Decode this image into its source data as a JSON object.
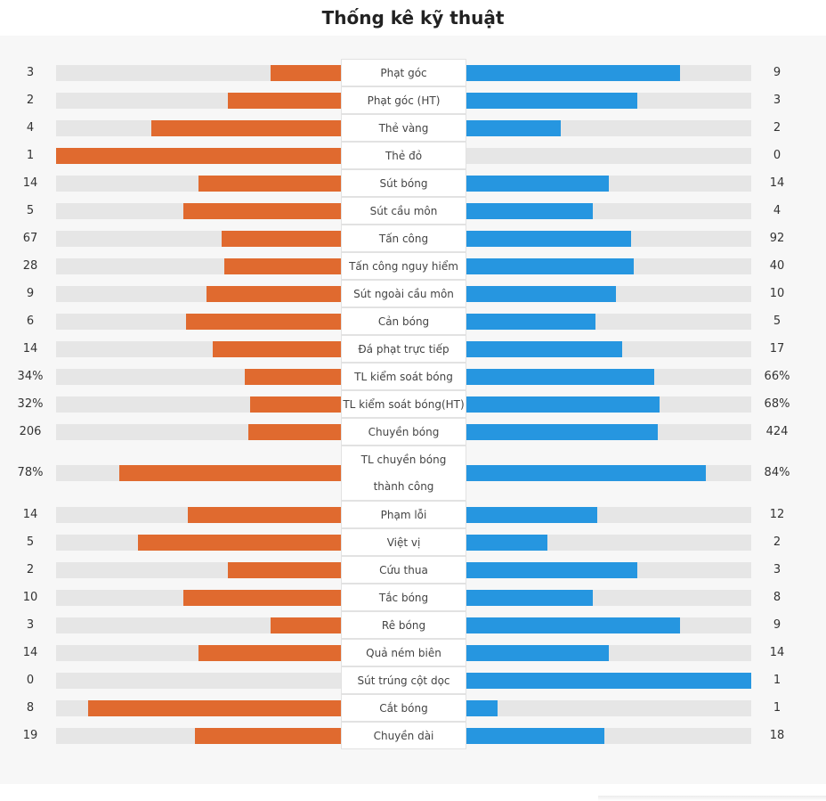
{
  "title": "Thống kê kỹ thuật",
  "colors": {
    "home": "#e06a2f",
    "away": "#2696e0",
    "track": "#e6e6e6"
  },
  "stats": [
    {
      "label": "Phạt góc",
      "home": "3",
      "away": "9",
      "home_fill": 0.25,
      "away_fill": 0.75
    },
    {
      "label": "Phạt góc (HT)",
      "home": "2",
      "away": "3",
      "home_fill": 0.4,
      "away_fill": 0.6
    },
    {
      "label": "Thẻ vàng",
      "home": "4",
      "away": "2",
      "home_fill": 0.667,
      "away_fill": 0.333
    },
    {
      "label": "Thẻ đỏ",
      "home": "1",
      "away": "0",
      "home_fill": 1.0,
      "away_fill": 0.0
    },
    {
      "label": "Sút bóng",
      "home": "14",
      "away": "14",
      "home_fill": 0.5,
      "away_fill": 0.5
    },
    {
      "label": "Sút cầu môn",
      "home": "5",
      "away": "4",
      "home_fill": 0.556,
      "away_fill": 0.444
    },
    {
      "label": "Tấn công",
      "home": "67",
      "away": "92",
      "home_fill": 0.421,
      "away_fill": 0.579
    },
    {
      "label": "Tấn công nguy hiểm",
      "home": "28",
      "away": "40",
      "home_fill": 0.412,
      "away_fill": 0.588
    },
    {
      "label": "Sút ngoài cầu môn",
      "home": "9",
      "away": "10",
      "home_fill": 0.474,
      "away_fill": 0.526
    },
    {
      "label": "Cản bóng",
      "home": "6",
      "away": "5",
      "home_fill": 0.545,
      "away_fill": 0.455
    },
    {
      "label": "Đá phạt trực tiếp",
      "home": "14",
      "away": "17",
      "home_fill": 0.452,
      "away_fill": 0.548
    },
    {
      "label": "TL kiểm soát bóng",
      "home": "34%",
      "away": "66%",
      "home_fill": 0.34,
      "away_fill": 0.66
    },
    {
      "label": "TL kiểm soát bóng(HT)",
      "home": "32%",
      "away": "68%",
      "home_fill": 0.32,
      "away_fill": 0.68
    },
    {
      "label": "Chuyền bóng",
      "home": "206",
      "away": "424",
      "home_fill": 0.327,
      "away_fill": 0.673
    },
    {
      "label": "TL chuyền bóng thành công",
      "home": "78%",
      "away": "84%",
      "home_fill": 0.78,
      "away_fill": 0.84
    },
    {
      "label": "Phạm lỗi",
      "home": "14",
      "away": "12",
      "home_fill": 0.538,
      "away_fill": 0.462
    },
    {
      "label": "Việt vị",
      "home": "5",
      "away": "2",
      "home_fill": 0.714,
      "away_fill": 0.286
    },
    {
      "label": "Cứu thua",
      "home": "2",
      "away": "3",
      "home_fill": 0.4,
      "away_fill": 0.6
    },
    {
      "label": "Tắc bóng",
      "home": "10",
      "away": "8",
      "home_fill": 0.556,
      "away_fill": 0.444
    },
    {
      "label": "Rê bóng",
      "home": "3",
      "away": "9",
      "home_fill": 0.25,
      "away_fill": 0.75
    },
    {
      "label": "Quả ném biên",
      "home": "14",
      "away": "14",
      "home_fill": 0.5,
      "away_fill": 0.5
    },
    {
      "label": "Sút trúng cột dọc",
      "home": "0",
      "away": "1",
      "home_fill": 0.0,
      "away_fill": 1.0
    },
    {
      "label": "Cắt bóng",
      "home": "8",
      "away": "1",
      "home_fill": 0.889,
      "away_fill": 0.111
    },
    {
      "label": "Chuyền dài",
      "home": "19",
      "away": "18",
      "home_fill": 0.514,
      "away_fill": 0.486
    }
  ]
}
